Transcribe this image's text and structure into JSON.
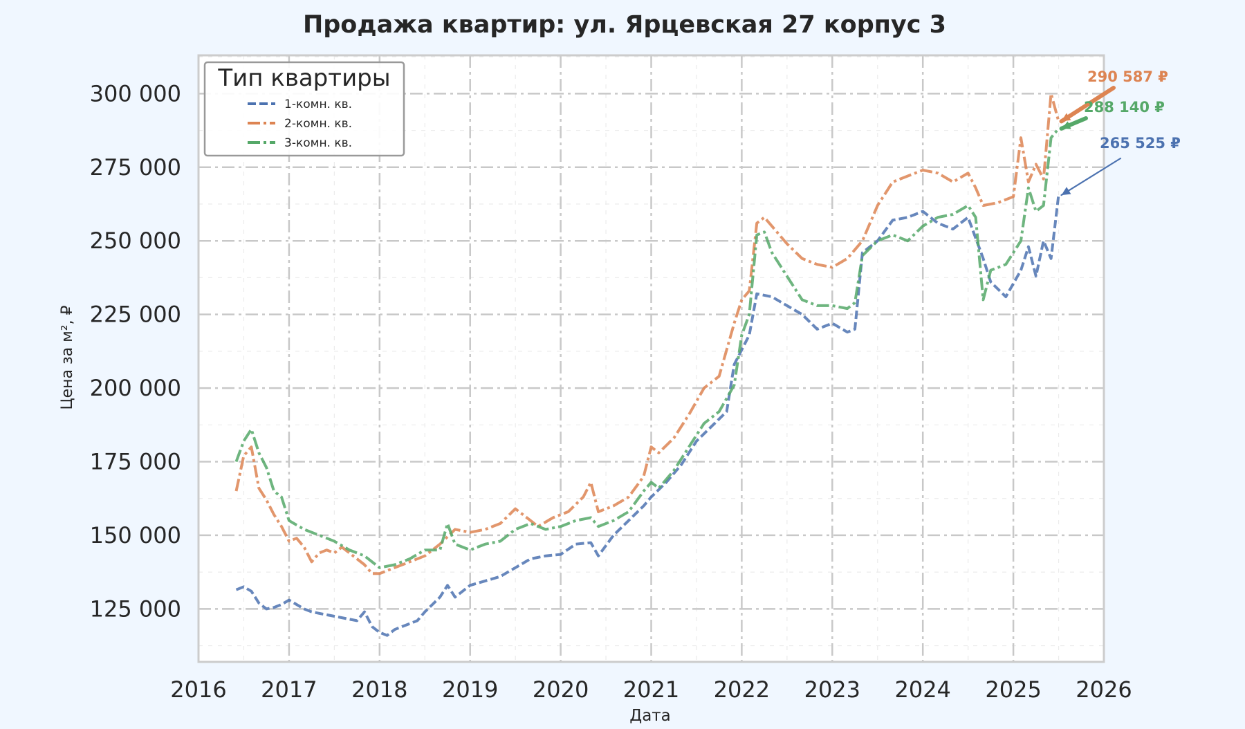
{
  "chart_data": {
    "type": "line",
    "title": "Продажа квартир: ул. Ярцевская 27 корпус 3",
    "xlabel": "Дата",
    "ylabel": "Цена за м², ₽",
    "x_ticks": [
      "2016",
      "2017",
      "2018",
      "2019",
      "2020",
      "2021",
      "2022",
      "2023",
      "2024",
      "2025",
      "2026"
    ],
    "y_ticks": [
      "125 000",
      "150 000",
      "175 000",
      "200 000",
      "225 000",
      "250 000",
      "275 000",
      "300 000"
    ],
    "xlim": [
      "2016-01-01",
      "2026-01-01"
    ],
    "ylim": [
      107000,
      313000
    ],
    "grid": true,
    "legend": {
      "title": "Тип квартиры",
      "position": "top-left"
    },
    "series": [
      {
        "name": "1-комн. кв.",
        "color": "#4c72b0",
        "dash": "dashed",
        "points": [
          [
            "2016-06-01",
            131500
          ],
          [
            "2016-07-01",
            132500
          ],
          [
            "2016-08-01",
            131000
          ],
          [
            "2016-09-01",
            127000
          ],
          [
            "2016-10-01",
            125000
          ],
          [
            "2016-11-01",
            125500
          ],
          [
            "2016-12-01",
            126500
          ],
          [
            "2017-01-01",
            128000
          ],
          [
            "2017-02-01",
            126500
          ],
          [
            "2017-03-01",
            125000
          ],
          [
            "2017-04-01",
            124000
          ],
          [
            "2017-05-01",
            123500
          ],
          [
            "2017-06-01",
            123000
          ],
          [
            "2017-07-01",
            122500
          ],
          [
            "2017-08-01",
            122000
          ],
          [
            "2017-09-01",
            121500
          ],
          [
            "2017-10-01",
            121000
          ],
          [
            "2017-11-01",
            124000
          ],
          [
            "2017-12-01",
            119000
          ],
          [
            "2018-01-01",
            117000
          ],
          [
            "2018-02-01",
            116000
          ],
          [
            "2018-03-01",
            118000
          ],
          [
            "2018-04-01",
            119000
          ],
          [
            "2018-05-01",
            120000
          ],
          [
            "2018-06-01",
            121000
          ],
          [
            "2018-07-01",
            124000
          ],
          [
            "2018-08-01",
            126500
          ],
          [
            "2018-09-01",
            129000
          ],
          [
            "2018-10-01",
            133000
          ],
          [
            "2018-11-01",
            129000
          ],
          [
            "2018-12-01",
            131000
          ],
          [
            "2019-01-01",
            133000
          ],
          [
            "2019-03-01",
            134500
          ],
          [
            "2019-05-01",
            136000
          ],
          [
            "2019-07-01",
            139000
          ],
          [
            "2019-09-01",
            142000
          ],
          [
            "2019-11-01",
            143000
          ],
          [
            "2020-01-01",
            143500
          ],
          [
            "2020-03-01",
            147000
          ],
          [
            "2020-05-01",
            147500
          ],
          [
            "2020-06-01",
            143000
          ],
          [
            "2020-08-01",
            150000
          ],
          [
            "2020-10-01",
            155000
          ],
          [
            "2020-12-01",
            160000
          ],
          [
            "2021-01-01",
            163000
          ],
          [
            "2021-03-01",
            168000
          ],
          [
            "2021-05-01",
            174000
          ],
          [
            "2021-07-01",
            182000
          ],
          [
            "2021-09-01",
            187000
          ],
          [
            "2021-11-01",
            192000
          ],
          [
            "2021-12-01",
            208000
          ],
          [
            "2022-01-01",
            213000
          ],
          [
            "2022-02-01",
            218000
          ],
          [
            "2022-03-01",
            232000
          ],
          [
            "2022-05-01",
            231000
          ],
          [
            "2022-07-01",
            228000
          ],
          [
            "2022-09-01",
            225000
          ],
          [
            "2022-11-01",
            220000
          ],
          [
            "2023-01-01",
            222000
          ],
          [
            "2023-03-01",
            219000
          ],
          [
            "2023-04-01",
            220000
          ],
          [
            "2023-05-01",
            246000
          ],
          [
            "2023-07-01",
            250000
          ],
          [
            "2023-09-01",
            257000
          ],
          [
            "2023-11-01",
            258000
          ],
          [
            "2024-01-01",
            260000
          ],
          [
            "2024-03-01",
            256000
          ],
          [
            "2024-05-01",
            254000
          ],
          [
            "2024-07-01",
            258000
          ],
          [
            "2024-09-01",
            244000
          ],
          [
            "2024-10-01",
            236000
          ],
          [
            "2024-12-01",
            231000
          ],
          [
            "2025-02-01",
            240000
          ],
          [
            "2025-03-01",
            248000
          ],
          [
            "2025-04-01",
            238000
          ],
          [
            "2025-05-01",
            250000
          ],
          [
            "2025-06-01",
            244000
          ],
          [
            "2025-07-01",
            265525
          ]
        ]
      },
      {
        "name": "2-комн. кв.",
        "color": "#dd8452",
        "dash": "dashdot",
        "points": [
          [
            "2016-06-01",
            165000
          ],
          [
            "2016-07-01",
            177000
          ],
          [
            "2016-08-01",
            180000
          ],
          [
            "2016-09-01",
            166000
          ],
          [
            "2016-10-01",
            162000
          ],
          [
            "2016-11-01",
            157000
          ],
          [
            "2016-12-01",
            153000
          ],
          [
            "2017-01-01",
            148000
          ],
          [
            "2017-02-01",
            149000
          ],
          [
            "2017-03-01",
            146000
          ],
          [
            "2017-04-01",
            141000
          ],
          [
            "2017-05-01",
            144000
          ],
          [
            "2017-06-01",
            145000
          ],
          [
            "2017-07-01",
            144000
          ],
          [
            "2017-08-01",
            146000
          ],
          [
            "2017-09-01",
            144000
          ],
          [
            "2017-10-01",
            142000
          ],
          [
            "2017-11-01",
            140000
          ],
          [
            "2017-12-01",
            137000
          ],
          [
            "2018-01-01",
            137000
          ],
          [
            "2018-03-01",
            139000
          ],
          [
            "2018-05-01",
            141000
          ],
          [
            "2018-07-01",
            143000
          ],
          [
            "2018-09-01",
            147000
          ],
          [
            "2018-11-01",
            152000
          ],
          [
            "2019-01-01",
            151000
          ],
          [
            "2019-03-01",
            152000
          ],
          [
            "2019-05-01",
            154000
          ],
          [
            "2019-07-01",
            159000
          ],
          [
            "2019-08-01",
            157000
          ],
          [
            "2019-10-01",
            153000
          ],
          [
            "2019-12-01",
            156000
          ],
          [
            "2020-02-01",
            158000
          ],
          [
            "2020-04-01",
            163000
          ],
          [
            "2020-05-01",
            168000
          ],
          [
            "2020-06-01",
            158000
          ],
          [
            "2020-08-01",
            160000
          ],
          [
            "2020-10-01",
            163000
          ],
          [
            "2020-12-01",
            170000
          ],
          [
            "2021-01-01",
            180000
          ],
          [
            "2021-02-01",
            178000
          ],
          [
            "2021-04-01",
            183000
          ],
          [
            "2021-06-01",
            191000
          ],
          [
            "2021-08-01",
            200000
          ],
          [
            "2021-10-01",
            204000
          ],
          [
            "2021-12-01",
            222000
          ],
          [
            "2022-01-01",
            230000
          ],
          [
            "2022-02-01",
            233000
          ],
          [
            "2022-03-01",
            256000
          ],
          [
            "2022-04-01",
            258000
          ],
          [
            "2022-05-01",
            255000
          ],
          [
            "2022-07-01",
            249000
          ],
          [
            "2022-09-01",
            244000
          ],
          [
            "2022-11-01",
            242000
          ],
          [
            "2023-01-01",
            241000
          ],
          [
            "2023-03-01",
            244000
          ],
          [
            "2023-05-01",
            250000
          ],
          [
            "2023-07-01",
            262000
          ],
          [
            "2023-09-01",
            270000
          ],
          [
            "2023-11-01",
            272000
          ],
          [
            "2024-01-01",
            274000
          ],
          [
            "2024-03-01",
            273000
          ],
          [
            "2024-05-01",
            270000
          ],
          [
            "2024-07-01",
            273000
          ],
          [
            "2024-08-01",
            268000
          ],
          [
            "2024-09-01",
            262000
          ],
          [
            "2024-11-01",
            263000
          ],
          [
            "2025-01-01",
            265000
          ],
          [
            "2025-02-01",
            285000
          ],
          [
            "2025-03-01",
            270000
          ],
          [
            "2025-04-01",
            276000
          ],
          [
            "2025-05-01",
            271000
          ],
          [
            "2025-06-01",
            300000
          ],
          [
            "2025-07-01",
            290587
          ]
        ]
      },
      {
        "name": "3-комн. кв.",
        "color": "#55a868",
        "dash": "dashdot",
        "points": [
          [
            "2016-06-01",
            175000
          ],
          [
            "2016-07-01",
            182000
          ],
          [
            "2016-08-01",
            186000
          ],
          [
            "2016-09-01",
            178000
          ],
          [
            "2016-10-01",
            173000
          ],
          [
            "2016-11-01",
            165000
          ],
          [
            "2016-12-01",
            163000
          ],
          [
            "2017-01-01",
            155000
          ],
          [
            "2017-03-01",
            152000
          ],
          [
            "2017-05-01",
            150000
          ],
          [
            "2017-07-01",
            148000
          ],
          [
            "2017-09-01",
            145000
          ],
          [
            "2017-11-01",
            143000
          ],
          [
            "2018-01-01",
            139000
          ],
          [
            "2018-03-01",
            140000
          ],
          [
            "2018-05-01",
            142000
          ],
          [
            "2018-07-01",
            145000
          ],
          [
            "2018-09-01",
            145000
          ],
          [
            "2018-10-01",
            154000
          ],
          [
            "2018-11-01",
            147000
          ],
          [
            "2019-01-01",
            145000
          ],
          [
            "2019-03-01",
            147000
          ],
          [
            "2019-05-01",
            148000
          ],
          [
            "2019-07-01",
            152000
          ],
          [
            "2019-09-01",
            154000
          ],
          [
            "2019-11-01",
            152000
          ],
          [
            "2020-01-01",
            153000
          ],
          [
            "2020-03-01",
            155000
          ],
          [
            "2020-05-01",
            156000
          ],
          [
            "2020-06-01",
            153000
          ],
          [
            "2020-08-01",
            155000
          ],
          [
            "2020-10-01",
            158000
          ],
          [
            "2020-12-01",
            165000
          ],
          [
            "2021-01-01",
            168000
          ],
          [
            "2021-02-01",
            166000
          ],
          [
            "2021-04-01",
            172000
          ],
          [
            "2021-06-01",
            180000
          ],
          [
            "2021-08-01",
            188000
          ],
          [
            "2021-10-01",
            192000
          ],
          [
            "2021-12-01",
            201000
          ],
          [
            "2022-01-01",
            218000
          ],
          [
            "2022-02-01",
            225000
          ],
          [
            "2022-03-01",
            252000
          ],
          [
            "2022-04-01",
            253000
          ],
          [
            "2022-05-01",
            246000
          ],
          [
            "2022-07-01",
            238000
          ],
          [
            "2022-09-01",
            230000
          ],
          [
            "2022-11-01",
            228000
          ],
          [
            "2023-01-01",
            228000
          ],
          [
            "2023-03-01",
            227000
          ],
          [
            "2023-04-01",
            229000
          ],
          [
            "2023-05-01",
            245000
          ],
          [
            "2023-07-01",
            250000
          ],
          [
            "2023-09-01",
            252000
          ],
          [
            "2023-11-01",
            250000
          ],
          [
            "2024-01-01",
            255000
          ],
          [
            "2024-03-01",
            258000
          ],
          [
            "2024-05-01",
            259000
          ],
          [
            "2024-07-01",
            262000
          ],
          [
            "2024-08-01",
            258000
          ],
          [
            "2024-09-01",
            230000
          ],
          [
            "2024-10-01",
            240000
          ],
          [
            "2024-12-01",
            242000
          ],
          [
            "2025-02-01",
            250000
          ],
          [
            "2025-03-01",
            268000
          ],
          [
            "2025-04-01",
            260000
          ],
          [
            "2025-05-01",
            262000
          ],
          [
            "2025-06-01",
            285000
          ],
          [
            "2025-07-01",
            288140
          ]
        ]
      }
    ],
    "annotations": [
      {
        "series": 1,
        "text": "290 587 ₽",
        "color": "#dd8452"
      },
      {
        "series": 2,
        "text": "288 140 ₽",
        "color": "#55a868"
      },
      {
        "series": 0,
        "text": "265 525 ₽",
        "color": "#4c72b0"
      }
    ]
  }
}
